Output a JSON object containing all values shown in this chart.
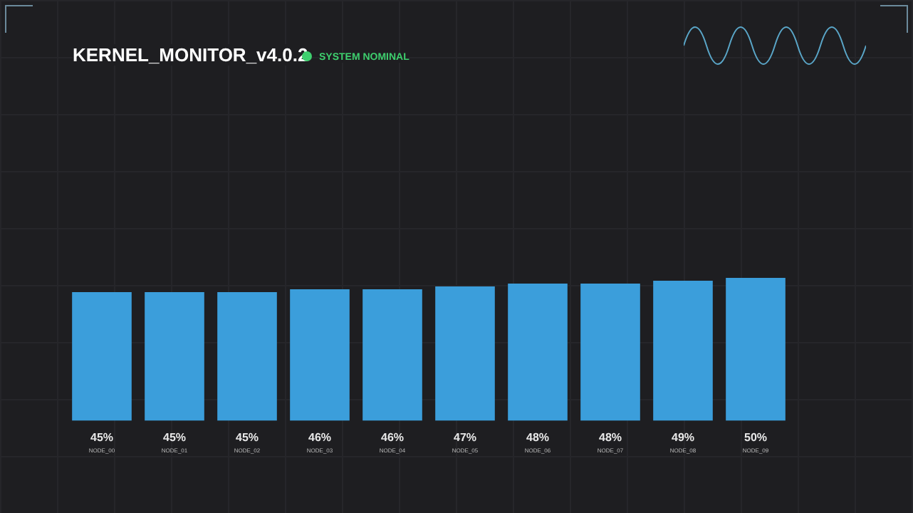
{
  "chart_data": {
    "type": "bar",
    "title": "KERNEL_MONITOR_v4.0.2",
    "subtitle": "SYSTEM NOMINAL",
    "categories": [
      "NODE_00",
      "NODE_01",
      "NODE_02",
      "NODE_03",
      "NODE_04",
      "NODE_05",
      "NODE_06",
      "NODE_07",
      "NODE_08",
      "NODE_09"
    ],
    "values": [
      45,
      45,
      45,
      46,
      46,
      47,
      48,
      48,
      49,
      50
    ],
    "value_labels": [
      "45%",
      "45%",
      "45%",
      "46%",
      "46%",
      "47%",
      "48%",
      "48%",
      "49%",
      "50%"
    ],
    "color": "#3b9edb",
    "legend": false
  }
}
